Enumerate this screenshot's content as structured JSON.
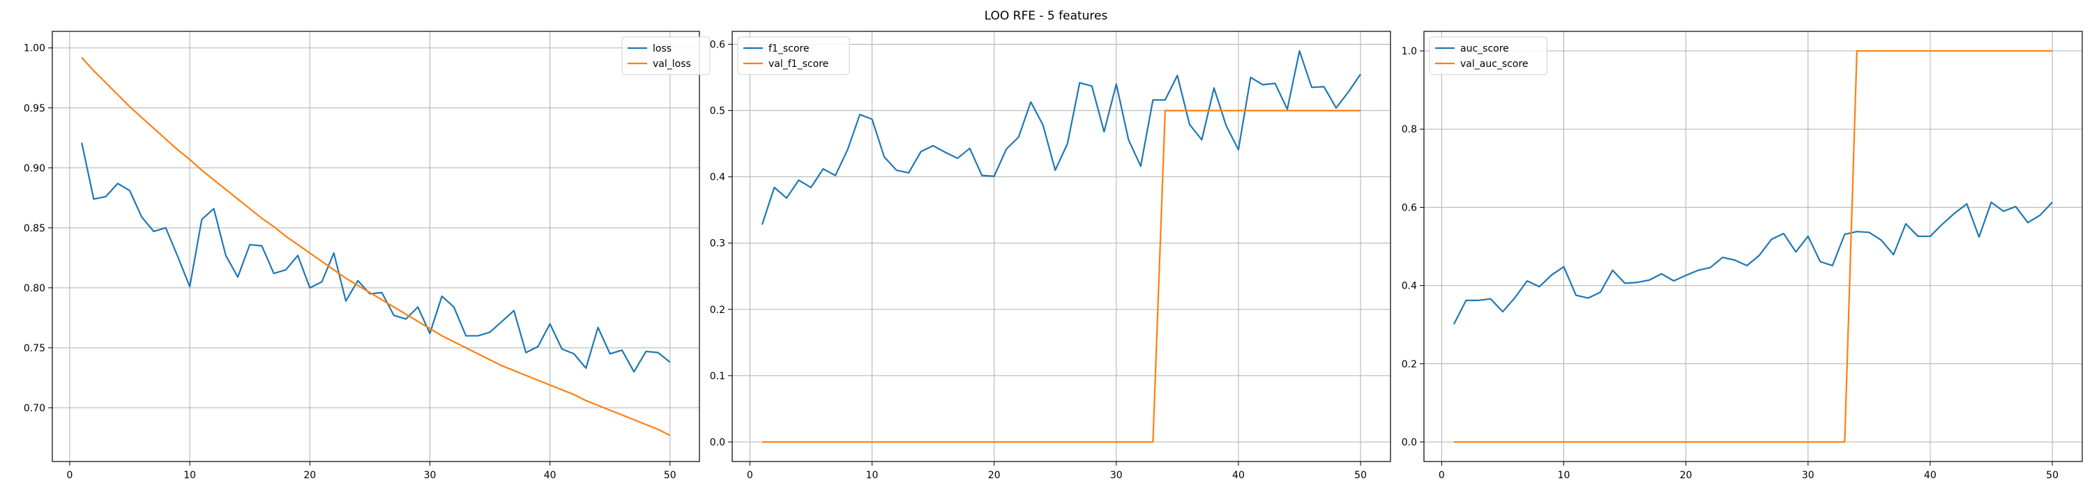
{
  "figure": {
    "suptitle": "LOO RFE - 5 features"
  },
  "chart_data": [
    {
      "type": "line",
      "xlim": [
        -1.45,
        52.45
      ],
      "ylim": [
        0.6552,
        1.0138
      ],
      "xticks": [
        0,
        10,
        20,
        30,
        40,
        50
      ],
      "yticks": [
        0.7,
        0.75,
        0.8,
        0.85,
        0.9,
        0.95,
        1.0
      ],
      "ytick_labels": [
        "0.70",
        "0.75",
        "0.80",
        "0.85",
        "0.90",
        "0.95",
        "1.00"
      ],
      "grid": true,
      "legend_position": "top-right",
      "x": [
        1,
        2,
        3,
        4,
        5,
        6,
        7,
        8,
        9,
        10,
        11,
        12,
        13,
        14,
        15,
        16,
        17,
        18,
        19,
        20,
        21,
        22,
        23,
        24,
        25,
        26,
        27,
        28,
        29,
        30,
        31,
        32,
        33,
        34,
        35,
        36,
        37,
        38,
        39,
        40,
        41,
        42,
        43,
        44,
        45,
        46,
        47,
        48,
        49,
        50
      ],
      "series": [
        {
          "name": "loss",
          "color": "#1f77b4",
          "values": [
            0.921,
            0.874,
            0.876,
            0.887,
            0.881,
            0.859,
            0.847,
            0.85,
            0.826,
            0.801,
            0.857,
            0.866,
            0.827,
            0.809,
            0.836,
            0.835,
            0.812,
            0.815,
            0.827,
            0.8,
            0.805,
            0.829,
            0.789,
            0.806,
            0.795,
            0.796,
            0.777,
            0.774,
            0.784,
            0.762,
            0.793,
            0.784,
            0.76,
            0.76,
            0.763,
            0.772,
            0.781,
            0.746,
            0.751,
            0.77,
            0.749,
            0.745,
            0.733,
            0.767,
            0.745,
            0.748,
            0.73,
            0.747,
            0.746,
            0.738
          ]
        },
        {
          "name": "val_loss",
          "color": "#ff7f0e",
          "values": [
            0.992,
            0.981,
            0.971,
            0.961,
            0.951,
            0.942,
            0.933,
            0.924,
            0.915,
            0.907,
            0.898,
            0.89,
            0.882,
            0.874,
            0.866,
            0.858,
            0.851,
            0.843,
            0.836,
            0.829,
            0.822,
            0.815,
            0.808,
            0.802,
            0.796,
            0.79,
            0.784,
            0.778,
            0.772,
            0.766,
            0.76,
            0.755,
            0.75,
            0.745,
            0.74,
            0.735,
            0.731,
            0.727,
            0.723,
            0.719,
            0.715,
            0.711,
            0.706,
            0.702,
            0.698,
            0.694,
            0.69,
            0.686,
            0.682,
            0.677
          ]
        }
      ]
    },
    {
      "type": "line",
      "xlim": [
        -1.45,
        52.45
      ],
      "ylim": [
        -0.0295,
        0.6195
      ],
      "xticks": [
        0,
        10,
        20,
        30,
        40,
        50
      ],
      "yticks": [
        0.0,
        0.1,
        0.2,
        0.3,
        0.4,
        0.5,
        0.6
      ],
      "ytick_labels": [
        "0.0",
        "0.1",
        "0.2",
        "0.3",
        "0.4",
        "0.5",
        "0.6"
      ],
      "grid": true,
      "legend_position": "top-left",
      "x": [
        1,
        2,
        3,
        4,
        5,
        6,
        7,
        8,
        9,
        10,
        11,
        12,
        13,
        14,
        15,
        16,
        17,
        18,
        19,
        20,
        21,
        22,
        23,
        24,
        25,
        26,
        27,
        28,
        29,
        30,
        31,
        32,
        33,
        34,
        35,
        36,
        37,
        38,
        39,
        40,
        41,
        42,
        43,
        44,
        45,
        46,
        47,
        48,
        49,
        50
      ],
      "series": [
        {
          "name": "f1_score",
          "color": "#1f77b4",
          "values": [
            0.328,
            0.384,
            0.368,
            0.395,
            0.384,
            0.412,
            0.402,
            0.441,
            0.494,
            0.487,
            0.43,
            0.41,
            0.406,
            0.438,
            0.447,
            0.437,
            0.428,
            0.443,
            0.402,
            0.401,
            0.442,
            0.46,
            0.513,
            0.478,
            0.41,
            0.45,
            0.542,
            0.537,
            0.468,
            0.54,
            0.456,
            0.416,
            0.516,
            0.516,
            0.553,
            0.479,
            0.456,
            0.534,
            0.477,
            0.441,
            0.55,
            0.539,
            0.541,
            0.502,
            0.59,
            0.535,
            0.536,
            0.504,
            0.528,
            0.555
          ]
        },
        {
          "name": "val_f1_score",
          "color": "#ff7f0e",
          "values": [
            0,
            0,
            0,
            0,
            0,
            0,
            0,
            0,
            0,
            0,
            0,
            0,
            0,
            0,
            0,
            0,
            0,
            0,
            0,
            0,
            0,
            0,
            0,
            0,
            0,
            0,
            0,
            0,
            0,
            0,
            0,
            0,
            0,
            0.5,
            0.5,
            0.5,
            0.5,
            0.5,
            0.5,
            0.5,
            0.5,
            0.5,
            0.5,
            0.5,
            0.5,
            0.5,
            0.5,
            0.5,
            0.5,
            0.5
          ]
        }
      ]
    },
    {
      "type": "line",
      "xlim": [
        -1.45,
        52.45
      ],
      "ylim": [
        -0.05,
        1.05
      ],
      "xticks": [
        0,
        10,
        20,
        30,
        40,
        50
      ],
      "yticks": [
        0.0,
        0.2,
        0.4,
        0.6,
        0.8,
        1.0
      ],
      "ytick_labels": [
        "0.0",
        "0.2",
        "0.4",
        "0.6",
        "0.8",
        "1.0"
      ],
      "grid": true,
      "legend_position": "top-left",
      "x": [
        1,
        2,
        3,
        4,
        5,
        6,
        7,
        8,
        9,
        10,
        11,
        12,
        13,
        14,
        15,
        16,
        17,
        18,
        19,
        20,
        21,
        22,
        23,
        24,
        25,
        26,
        27,
        28,
        29,
        30,
        31,
        32,
        33,
        34,
        35,
        36,
        37,
        38,
        39,
        40,
        41,
        42,
        43,
        44,
        45,
        46,
        47,
        48,
        49,
        50
      ],
      "series": [
        {
          "name": "auc_score",
          "color": "#1f77b4",
          "values": [
            0.301,
            0.362,
            0.362,
            0.366,
            0.333,
            0.369,
            0.412,
            0.397,
            0.427,
            0.448,
            0.375,
            0.368,
            0.383,
            0.439,
            0.406,
            0.408,
            0.414,
            0.43,
            0.412,
            0.426,
            0.439,
            0.446,
            0.472,
            0.465,
            0.451,
            0.477,
            0.518,
            0.533,
            0.486,
            0.526,
            0.461,
            0.451,
            0.531,
            0.538,
            0.536,
            0.516,
            0.479,
            0.558,
            0.526,
            0.526,
            0.557,
            0.585,
            0.609,
            0.524,
            0.613,
            0.59,
            0.602,
            0.561,
            0.58,
            0.613
          ]
        },
        {
          "name": "val_auc_score",
          "color": "#ff7f0e",
          "values": [
            0,
            0,
            0,
            0,
            0,
            0,
            0,
            0,
            0,
            0,
            0,
            0,
            0,
            0,
            0,
            0,
            0,
            0,
            0,
            0,
            0,
            0,
            0,
            0,
            0,
            0,
            0,
            0,
            0,
            0,
            0,
            0,
            0,
            1,
            1,
            1,
            1,
            1,
            1,
            1,
            1,
            1,
            1,
            1,
            1,
            1,
            1,
            1,
            1,
            1
          ]
        }
      ]
    }
  ]
}
